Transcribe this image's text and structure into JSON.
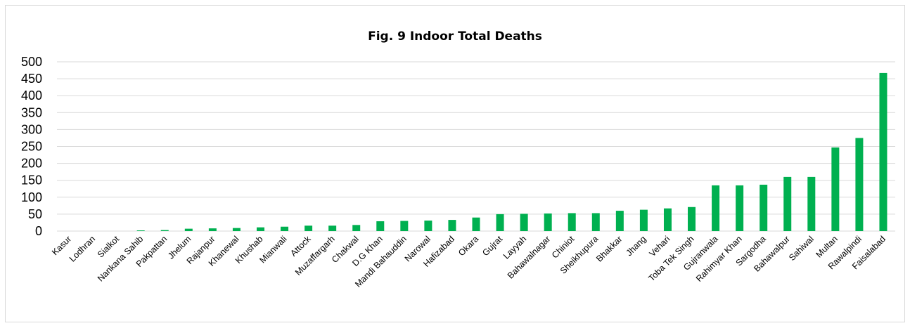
{
  "chart_data": {
    "type": "bar",
    "title": "Fig. 9 Indoor Total Deaths",
    "xlabel": "",
    "ylabel": "",
    "ylim": [
      0,
      500
    ],
    "yticks": [
      0,
      50,
      100,
      150,
      200,
      250,
      300,
      350,
      400,
      450,
      500
    ],
    "grid": true,
    "legend": "none",
    "bar_color": "#00b050",
    "categories": [
      "Kasur",
      "Lodhran",
      "Sialkot",
      "Nankana Sahib",
      "Pakpattan",
      "Jhelum",
      "Rajanpur",
      "Khanewal",
      "Khushab",
      "Mianwali",
      "Attock",
      "Muzaffargarh",
      "Chakwal",
      "D.G Khan",
      "Mandi Bahauddin",
      "Narowal",
      "Hafizabad",
      "Okara",
      "Gujrat",
      "Layyah",
      "Bahawalnagar",
      "Chiniot",
      "Sheikhupura",
      "Bhakkar",
      "Jhang",
      "Vehari",
      "Toba Tek Singh",
      "Gujranwala",
      "Rahimyar Khan",
      "Sargodha",
      "Bahawalpur",
      "Sahiwal",
      "Multan",
      "Rawalpindi",
      "Faisalabad"
    ],
    "values": [
      0,
      0,
      0,
      2,
      3,
      7,
      8,
      9,
      11,
      13,
      16,
      16,
      18,
      29,
      30,
      31,
      33,
      40,
      50,
      51,
      52,
      53,
      53,
      60,
      63,
      67,
      71,
      135,
      135,
      137,
      160,
      160,
      247,
      275,
      467
    ]
  }
}
